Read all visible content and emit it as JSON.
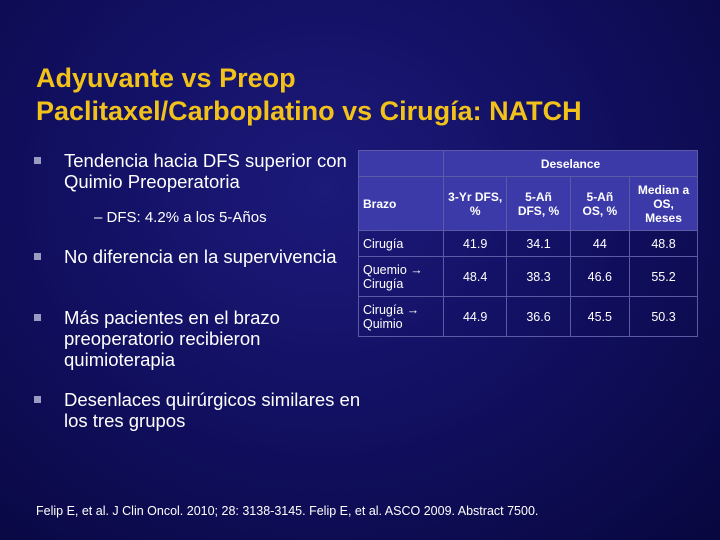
{
  "title": {
    "line1": "Adyuvante vs Preop",
    "line2": "Paclitaxel/Carboplatino vs Cirugía: NATCH"
  },
  "bullets": [
    {
      "text": "Tendencia hacia DFS superior con Quimio Preoperatoria"
    },
    {
      "text": "No diferencia en la supervivencia"
    },
    {
      "text": "Más pacientes en el brazo preoperatorio recibieron quimioterapia"
    },
    {
      "text": "Desenlaces quirúrgicos similares en los tres grupos"
    }
  ],
  "sub_bullet": "– DFS: 4.2% a los 5-Años",
  "table": {
    "group_header": "Deselance",
    "brazo_header": "Brazo",
    "columns": [
      "3-Yr DFS, %",
      "5-Añ DFS, %",
      "5-Añ OS, %",
      "Median a OS, Meses"
    ],
    "rows": [
      {
        "arm": "Cirugía",
        "values": [
          "41.9",
          "34.1",
          "44",
          "48.8"
        ]
      },
      {
        "arm": "Quemio → Cirugía",
        "values": [
          "48.4",
          "38.3",
          "46.6",
          "55.2"
        ]
      },
      {
        "arm": "Cirugía → Quimio",
        "values": [
          "44.9",
          "36.6",
          "45.5",
          "50.3"
        ]
      }
    ]
  },
  "footnote": "Felip E, et al. J Clin Oncol. 2010; 28: 3138-3145. Felip E, et al. ASCO 2009. Abstract 7500.",
  "colors": {
    "title": "#f2c21a",
    "background": "#121062",
    "header_fill": "#3c3aa8"
  }
}
